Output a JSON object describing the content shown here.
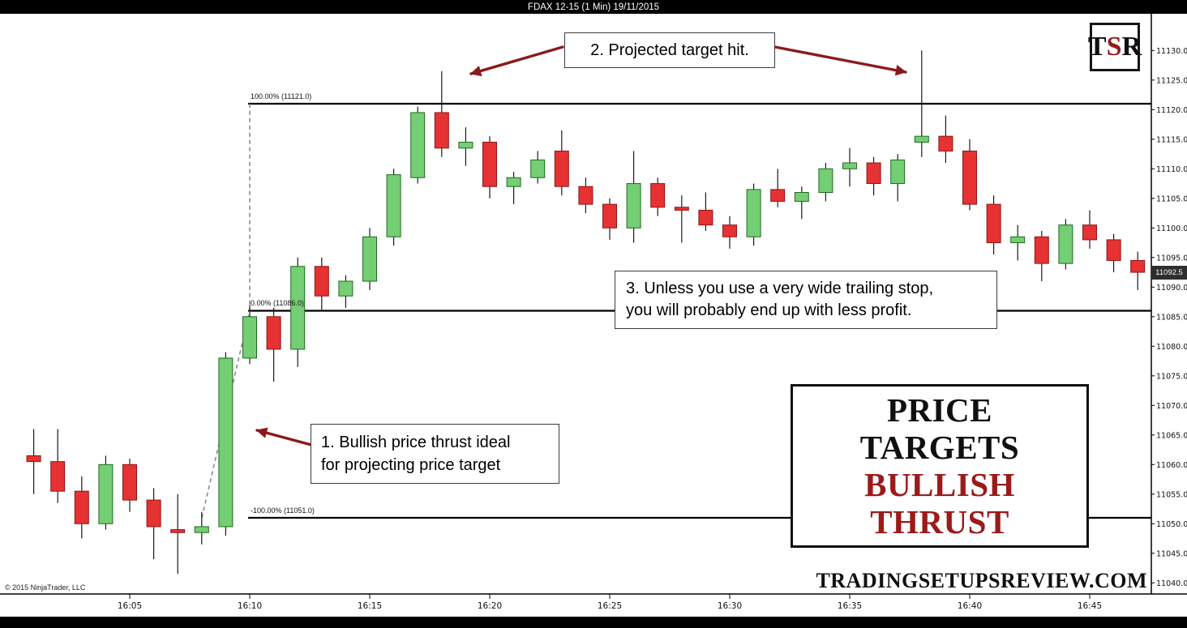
{
  "title_bar": {
    "text": "FDAX 12-15 (1 Min)  19/11/2015"
  },
  "logo": {
    "letter_t": "T",
    "letter_s": "S",
    "letter_r": "R"
  },
  "annotations": {
    "note1": {
      "line1": "1. Bullish price thrust ideal",
      "line2": "for projecting price target"
    },
    "note2": {
      "text": "2. Projected target hit."
    },
    "note3": {
      "line1": "3. Unless you use a very wide trailing stop,",
      "line2": "you will probably end up with less profit."
    }
  },
  "callout": {
    "line1": "PRICE TARGETS",
    "line2": "BULLISH THRUST"
  },
  "fib_labels": {
    "target": "100.00% (11121.0)",
    "base": "0.00% (11086.0)",
    "origin": "-100.00% (11051.0)"
  },
  "price_badge": "11092.5",
  "watermark": "TRADINGSETUPSREVIEW.COM",
  "copyright": "© 2015 NinjaTrader, LLC",
  "colors": {
    "up_fill": "#74ce74",
    "up_stroke": "#1f6b1f",
    "down_fill": "#e63232",
    "down_stroke": "#8f1515",
    "wick": "#1a1a1a",
    "fib_line": "#000000",
    "dashed": "#8a8a8a",
    "arrow": "#8b1a1a",
    "accent_maroon": "#9b1a1a",
    "badge_bg": "#2e2e2e"
  },
  "chart_data": {
    "type": "candlestick",
    "title": "FDAX 12-15 (1 Min) 19/11/2015",
    "symbol": "FDAX 12-15",
    "interval": "1 Min",
    "session_date": "19/11/2015",
    "legend_position": "none",
    "grid": false,
    "x_ticks": [
      "16:05",
      "16:10",
      "16:15",
      "16:20",
      "16:25",
      "16:30",
      "16:35",
      "16:40",
      "16:45"
    ],
    "y_axis": {
      "min": 11040,
      "max": 11130,
      "step": 5,
      "side": "right"
    },
    "fib_levels": [
      {
        "pct": 100,
        "price": 11121.0
      },
      {
        "pct": 0,
        "price": 11086.0
      },
      {
        "pct": -100,
        "price": 11051.0
      }
    ],
    "last_price": 11092.5,
    "candles": [
      {
        "t": "16:01",
        "o": 11061.5,
        "h": 11066.0,
        "l": 11055.0,
        "c": 11060.5
      },
      {
        "t": "16:02",
        "o": 11060.5,
        "h": 11066.0,
        "l": 11053.5,
        "c": 11055.5
      },
      {
        "t": "16:03",
        "o": 11055.5,
        "h": 11058.0,
        "l": 11047.5,
        "c": 11050.0
      },
      {
        "t": "16:04",
        "o": 11050.0,
        "h": 11061.5,
        "l": 11049.0,
        "c": 11060.0
      },
      {
        "t": "16:05",
        "o": 11060.0,
        "h": 11061.0,
        "l": 11052.0,
        "c": 11054.0
      },
      {
        "t": "16:06",
        "o": 11054.0,
        "h": 11056.0,
        "l": 11044.0,
        "c": 11049.5
      },
      {
        "t": "16:07",
        "o": 11049.0,
        "h": 11055.0,
        "l": 11041.5,
        "c": 11048.5
      },
      {
        "t": "16:08",
        "o": 11048.5,
        "h": 11052.0,
        "l": 11046.5,
        "c": 11049.5
      },
      {
        "t": "16:09",
        "o": 11049.5,
        "h": 11079.0,
        "l": 11048.0,
        "c": 11078.0
      },
      {
        "t": "16:10",
        "o": 11078.0,
        "h": 11087.0,
        "l": 11077.0,
        "c": 11085.0
      },
      {
        "t": "16:11",
        "o": 11085.0,
        "h": 11086.5,
        "l": 11074.0,
        "c": 11079.5
      },
      {
        "t": "16:12",
        "o": 11079.5,
        "h": 11095.0,
        "l": 11076.5,
        "c": 11093.5
      },
      {
        "t": "16:13",
        "o": 11093.5,
        "h": 11095.0,
        "l": 11086.0,
        "c": 11088.5
      },
      {
        "t": "16:14",
        "o": 11088.5,
        "h": 11092.0,
        "l": 11086.5,
        "c": 11091.0
      },
      {
        "t": "16:15",
        "o": 11091.0,
        "h": 11100.0,
        "l": 11089.5,
        "c": 11098.5
      },
      {
        "t": "16:16",
        "o": 11098.5,
        "h": 11110.0,
        "l": 11097.0,
        "c": 11109.0
      },
      {
        "t": "16:17",
        "o": 11108.5,
        "h": 11120.5,
        "l": 11107.5,
        "c": 11119.5
      },
      {
        "t": "16:18",
        "o": 11119.5,
        "h": 11126.5,
        "l": 11112.0,
        "c": 11113.5
      },
      {
        "t": "16:19",
        "o": 11113.5,
        "h": 11117.0,
        "l": 11110.5,
        "c": 11114.5
      },
      {
        "t": "16:20",
        "o": 11114.5,
        "h": 11115.5,
        "l": 11105.0,
        "c": 11107.0
      },
      {
        "t": "16:21",
        "o": 11107.0,
        "h": 11109.5,
        "l": 11104.0,
        "c": 11108.5
      },
      {
        "t": "16:22",
        "o": 11108.5,
        "h": 11113.0,
        "l": 11107.5,
        "c": 11111.5
      },
      {
        "t": "16:23",
        "o": 11113.0,
        "h": 11116.5,
        "l": 11105.5,
        "c": 11107.0
      },
      {
        "t": "16:24",
        "o": 11107.0,
        "h": 11108.5,
        "l": 11102.5,
        "c": 11104.0
      },
      {
        "t": "16:25",
        "o": 11104.0,
        "h": 11105.0,
        "l": 11098.0,
        "c": 11100.0
      },
      {
        "t": "16:26",
        "o": 11100.0,
        "h": 11113.0,
        "l": 11097.5,
        "c": 11107.5
      },
      {
        "t": "16:27",
        "o": 11107.5,
        "h": 11108.5,
        "l": 11102.0,
        "c": 11103.5
      },
      {
        "t": "16:28",
        "o": 11103.5,
        "h": 11105.5,
        "l": 11097.5,
        "c": 11103.0
      },
      {
        "t": "16:29",
        "o": 11103.0,
        "h": 11106.0,
        "l": 11099.5,
        "c": 11100.5
      },
      {
        "t": "16:30",
        "o": 11100.5,
        "h": 11102.0,
        "l": 11096.5,
        "c": 11098.5
      },
      {
        "t": "16:31",
        "o": 11098.5,
        "h": 11107.5,
        "l": 11097.0,
        "c": 11106.5
      },
      {
        "t": "16:32",
        "o": 11106.5,
        "h": 11110.0,
        "l": 11103.5,
        "c": 11104.5
      },
      {
        "t": "16:33",
        "o": 11104.5,
        "h": 11107.0,
        "l": 11101.5,
        "c": 11106.0
      },
      {
        "t": "16:34",
        "o": 11106.0,
        "h": 11111.0,
        "l": 11104.5,
        "c": 11110.0
      },
      {
        "t": "16:35",
        "o": 11110.0,
        "h": 11113.5,
        "l": 11107.0,
        "c": 11111.0
      },
      {
        "t": "16:36",
        "o": 11111.0,
        "h": 11112.0,
        "l": 11105.5,
        "c": 11107.5
      },
      {
        "t": "16:37",
        "o": 11107.5,
        "h": 11112.5,
        "l": 11104.5,
        "c": 11111.5
      },
      {
        "t": "16:38",
        "o": 11114.5,
        "h": 11130.0,
        "l": 11112.0,
        "c": 11115.5
      },
      {
        "t": "16:39",
        "o": 11115.5,
        "h": 11119.0,
        "l": 11111.0,
        "c": 11113.0
      },
      {
        "t": "16:40",
        "o": 11113.0,
        "h": 11115.0,
        "l": 11103.0,
        "c": 11104.0
      },
      {
        "t": "16:41",
        "o": 11104.0,
        "h": 11105.5,
        "l": 11095.5,
        "c": 11097.5
      },
      {
        "t": "16:42",
        "o": 11097.5,
        "h": 11100.5,
        "l": 11094.5,
        "c": 11098.5
      },
      {
        "t": "16:43",
        "o": 11098.5,
        "h": 11099.5,
        "l": 11091.0,
        "c": 11094.0
      },
      {
        "t": "16:44",
        "o": 11094.0,
        "h": 11101.5,
        "l": 11093.0,
        "c": 11100.5
      },
      {
        "t": "16:45",
        "o": 11100.5,
        "h": 11103.0,
        "l": 11096.5,
        "c": 11098.0
      },
      {
        "t": "16:46",
        "o": 11098.0,
        "h": 11099.0,
        "l": 11092.5,
        "c": 11094.5
      },
      {
        "t": "16:47",
        "o": 11094.5,
        "h": 11096.0,
        "l": 11089.5,
        "c": 11092.5
      }
    ]
  }
}
